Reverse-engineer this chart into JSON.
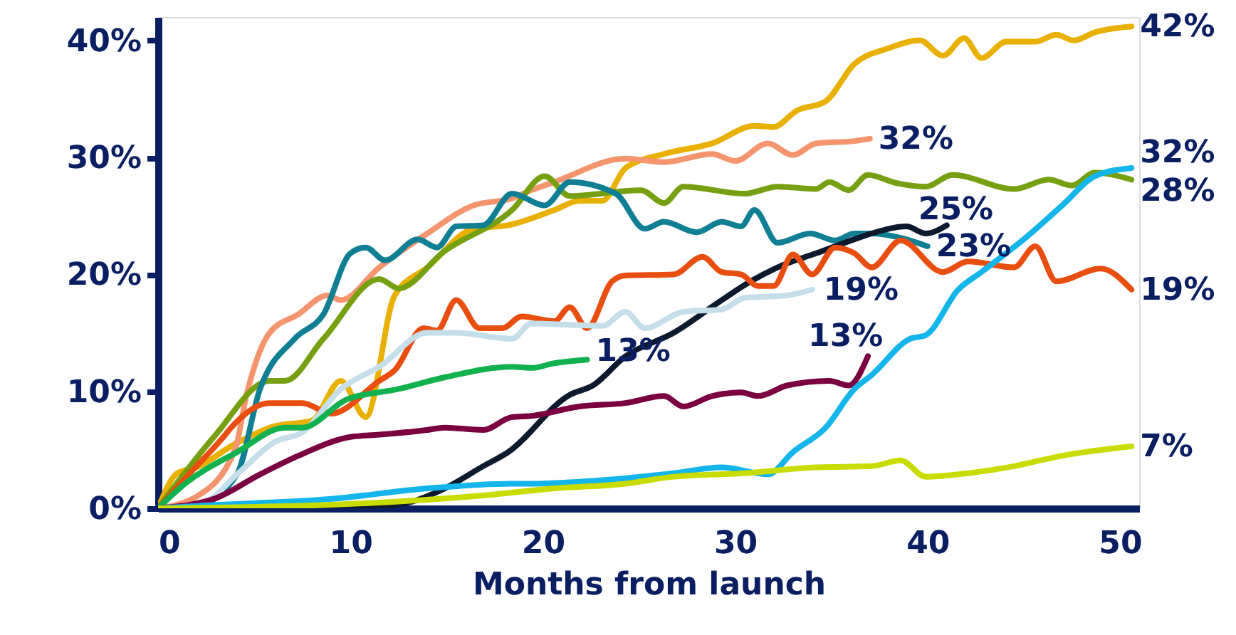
{
  "chart_data": {
    "type": "line",
    "xlabel": "Months from launch",
    "xlim": [
      0,
      51
    ],
    "xticks": [
      0,
      10,
      20,
      30,
      40,
      50
    ],
    "ylim": [
      0,
      42
    ],
    "yticks": [
      {
        "value": 0,
        "label": "0%"
      },
      {
        "value": 10,
        "label": "10%"
      },
      {
        "value": 20,
        "label": "20%"
      },
      {
        "value": 30,
        "label": "30%"
      },
      {
        "value": 40,
        "label": "40%"
      }
    ],
    "grid": false,
    "marker": "none",
    "line_style": "solid",
    "series": [
      {
        "color": "#e8b000",
        "x": [
          0,
          1,
          2,
          4,
          6,
          8,
          9.5,
          10.8,
          12.3,
          14,
          16.4,
          18.2,
          20.6,
          21.9,
          23.1,
          24.3,
          26.3,
          28.8,
          31,
          32,
          33.2,
          34.7,
          36.2,
          37.9,
          39.6,
          40.8,
          41.9,
          42.8,
          44.1,
          45.6,
          46.7,
          47.6,
          48.7,
          50.6
        ],
        "values": [
          0,
          3,
          3.5,
          5.5,
          7,
          7.5,
          10.9,
          7.8,
          18.2,
          20.6,
          23.9,
          24.2,
          25.5,
          26.3,
          26.3,
          29.1,
          30.3,
          31.2,
          32.7,
          32.6,
          34,
          34.8,
          38,
          39.3,
          40,
          38.7,
          40.2,
          38.5,
          39.9,
          39.9,
          40.5,
          40,
          40.7,
          41.2
        ]
      },
      {
        "color": "#f4956f",
        "x": [
          0,
          2,
          4,
          4.6,
          5.8,
          7.3,
          8.8,
          9.5,
          11.5,
          14,
          16.4,
          18.4,
          19.4,
          20.6,
          24.3,
          26.3,
          28.8,
          30,
          31.7,
          33,
          34.2,
          36.2,
          37
        ],
        "values": [
          0,
          1,
          5,
          9.7,
          15,
          16.6,
          18.2,
          17.8,
          20.6,
          23.5,
          25.9,
          26.5,
          27.2,
          27.9,
          29.9,
          29.6,
          30.3,
          29.7,
          31.2,
          30.2,
          31.2,
          31.4,
          31.6
        ]
      },
      {
        "color": "#76a012",
        "x": [
          0,
          2.9,
          5.8,
          6.6,
          8.6,
          11.5,
          12.5,
          14.9,
          18.4,
          20.1,
          21.4,
          25.1,
          26.3,
          27.3,
          30.5,
          32.2,
          34.2,
          34.9,
          35.9,
          36.9,
          38.4,
          39.9,
          41.3,
          44.5,
          46.3,
          47.5,
          48.7,
          50.6
        ],
        "values": [
          0,
          6.1,
          10.9,
          10.9,
          14.5,
          19.6,
          18.8,
          22,
          25.5,
          28.4,
          26.7,
          27.2,
          26.1,
          27.5,
          26.9,
          27.5,
          27.3,
          27.9,
          27.2,
          28.5,
          27.8,
          27.5,
          28.5,
          27.3,
          28.1,
          27.6,
          28.7,
          28.1
        ]
      },
      {
        "color": "#117f93",
        "x": [
          0,
          2,
          4.1,
          5.3,
          7.1,
          8.6,
          10,
          10.8,
          11.8,
          13.5,
          14.5,
          15.5,
          16.9,
          18.4,
          20.1,
          21.4,
          23.8,
          25.3,
          26.3,
          28,
          29.3,
          30.3,
          31,
          32.2,
          33.9,
          35.2,
          36.2,
          37.1,
          39.1,
          40
        ],
        "values": [
          0,
          0.2,
          2.9,
          10.2,
          14.5,
          16.6,
          21.8,
          22.3,
          21.2,
          23,
          22.3,
          24.1,
          24.2,
          26.9,
          25.9,
          27.9,
          26.9,
          23.9,
          24.5,
          23.6,
          24.5,
          24.1,
          25.5,
          22.7,
          23.5,
          22.9,
          23.5,
          23.5,
          22.9,
          22.4
        ]
      },
      {
        "color": "#0d1a2e",
        "x": [
          0,
          5,
          10,
          13,
          14.9,
          16.9,
          18.2,
          21.4,
          22.6,
          24.3,
          26.8,
          29.3,
          30.8,
          32.2,
          34.2,
          36.2,
          37.1,
          38.9,
          39.9,
          41
        ],
        "values": [
          0,
          0,
          0,
          0.5,
          1.7,
          3.6,
          4.8,
          9.7,
          10.5,
          13,
          15,
          17.8,
          19.4,
          20.6,
          21.8,
          23,
          23.5,
          24.1,
          23.5,
          24.2
        ]
      },
      {
        "color": "#e84e10",
        "x": [
          0,
          1.6,
          3.4,
          3.8,
          5.8,
          7.5,
          9,
          11.5,
          12.3,
          13.8,
          14.5,
          15.5,
          16.7,
          17.9,
          18.9,
          20.6,
          21.4,
          22.3,
          23.6,
          24.3,
          26.8,
          28.3,
          29.3,
          30.3,
          31.2,
          32,
          33,
          34,
          35.2,
          36.2,
          37.1,
          38.6,
          40.8,
          42.1,
          44.5,
          45.6,
          46.7,
          49,
          50.6
        ],
        "values": [
          0,
          2.9,
          6.1,
          6.9,
          9,
          9,
          8.1,
          10.9,
          11.8,
          15.4,
          15.2,
          17.8,
          15.4,
          15.4,
          16.4,
          16,
          17.2,
          15.4,
          19.4,
          19.9,
          20,
          21.5,
          20.2,
          20,
          19,
          19,
          21.7,
          20,
          22.3,
          21.8,
          20.6,
          22.9,
          20.2,
          21.1,
          20.6,
          22.4,
          19.4,
          20.5,
          18.7
        ]
      },
      {
        "color": "#c5dfea",
        "x": [
          0,
          2.4,
          4.1,
          6.1,
          7.5,
          9.5,
          11.5,
          14,
          15.5,
          18.4,
          19.4,
          23.1,
          24.3,
          25.3,
          27.3,
          29.3,
          30.5,
          32.7,
          34
        ],
        "values": [
          0,
          0.5,
          2.9,
          5.7,
          6.5,
          10.2,
          12.1,
          15,
          15,
          14.5,
          15.8,
          15.6,
          16.8,
          15.4,
          16.8,
          17,
          18,
          18.2,
          18.7
        ]
      },
      {
        "color": "#12b14f",
        "x": [
          0,
          1.4,
          4.1,
          6.6,
          7.5,
          9.8,
          12.5,
          14.9,
          18.4,
          19.4,
          20.6,
          22.3
        ],
        "values": [
          0,
          2.1,
          4.8,
          6.9,
          6.9,
          9.3,
          10.2,
          11.2,
          12.1,
          12,
          12.4,
          12.7
        ]
      },
      {
        "color": "#7b0040",
        "x": [
          0,
          2.9,
          5.3,
          7.3,
          10,
          11.5,
          14,
          14.9,
          16.9,
          18.4,
          19.4,
          21.9,
          24.3,
          26.3,
          27.3,
          28.8,
          30.3,
          31.2,
          32.7,
          34.9,
          35.9,
          36.9
        ],
        "values": [
          0,
          0.8,
          2.9,
          4.5,
          6.1,
          6.3,
          6.7,
          6.9,
          6.7,
          7.8,
          7.9,
          8.7,
          9,
          9.6,
          8.7,
          9.6,
          9.9,
          9.6,
          10.5,
          10.9,
          10.5,
          13
        ]
      },
      {
        "color": "#13b5ea",
        "x": [
          0,
          2,
          9,
          14,
          18.4,
          19.4,
          23.1,
          26.8,
          29.3,
          31.7,
          33,
          34.7,
          36.2,
          37.1,
          39.1,
          39.9,
          41.6,
          42.8,
          45,
          47,
          48.7,
          50.6
        ],
        "values": [
          0,
          0.2,
          0.8,
          1.7,
          2.1,
          2.1,
          2.4,
          3,
          3.5,
          2.9,
          4.8,
          6.9,
          10.2,
          11.4,
          14.5,
          14.8,
          18.7,
          20.2,
          23,
          25.9,
          28.4,
          29.1
        ]
      },
      {
        "color": "#c8dc00",
        "x": [
          0,
          9,
          16.9,
          20.6,
          24.3,
          26.8,
          30.5,
          34.2,
          37.1,
          38.6,
          39.9,
          42.1,
          44.5,
          47,
          50.6
        ],
        "values": [
          0,
          0.3,
          1.1,
          1.7,
          2.1,
          2.7,
          3,
          3.5,
          3.6,
          4.1,
          2.7,
          3,
          3.6,
          4.5,
          5.3
        ]
      }
    ],
    "annotations": [
      {
        "text": "42%",
        "x": 50.6,
        "y": 41.2
      },
      {
        "text": "32%",
        "x": 37,
        "y": 31.6
      },
      {
        "text": "32%",
        "x": 50.6,
        "y": 29.1
      },
      {
        "text": "28%",
        "x": 50.6,
        "y": 28.1
      },
      {
        "text": "25%",
        "x": 41,
        "y": 24.2
      },
      {
        "text": "23%",
        "x": 40,
        "y": 22.4
      },
      {
        "text": "19%",
        "x": 50.6,
        "y": 18.7
      },
      {
        "text": "19%",
        "x": 34,
        "y": 18.7
      },
      {
        "text": "13%",
        "x": 22.3,
        "y": 12.7
      },
      {
        "text": "13%",
        "x": 36.9,
        "y": 13
      },
      {
        "text": "7%",
        "x": 50.6,
        "y": 5.3
      }
    ]
  }
}
